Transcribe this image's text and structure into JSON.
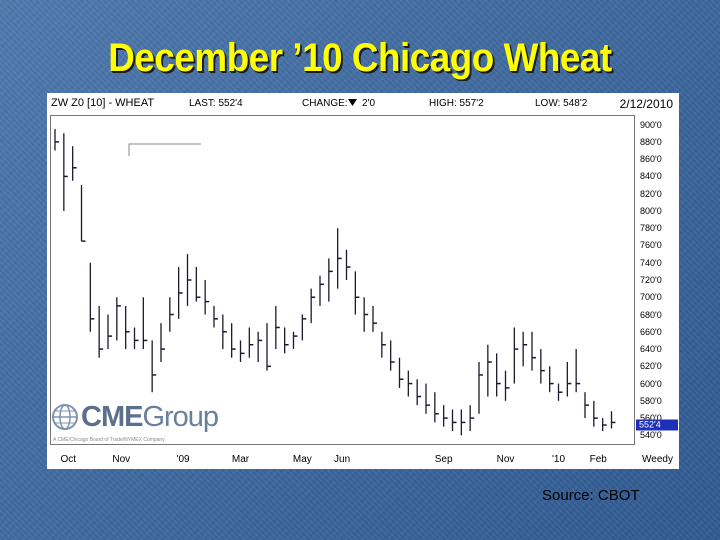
{
  "slide": {
    "title": "December ’10 Chicago Wheat",
    "source": "Source: CBOT",
    "title_color": "#ffff00",
    "background_color": "#3f6aa0"
  },
  "header": {
    "symbol": "ZW Z0 [10] - WHEAT",
    "last": "LAST: 552'4",
    "change_label": "CHANGE:",
    "change_icon": "down-triangle-icon",
    "change_value": "2'0",
    "high": "HIGH: 557'2",
    "low": "LOW: 548'2",
    "date": "2/12/2010"
  },
  "logo": {
    "name_bold": "CME",
    "name_rest": "Group",
    "tagline": "A CME/Chicago Board of Trade/NYMEX Company"
  },
  "last_badge": "552'4",
  "chart_data": {
    "type": "ohlc",
    "title": "",
    "xlabel": "",
    "ylabel": "",
    "ylim": [
      530,
      910
    ],
    "y_ticks": [
      "900'0",
      "880'0",
      "860'0",
      "840'0",
      "820'0",
      "800'0",
      "780'0",
      "760'0",
      "740'0",
      "720'0",
      "700'0",
      "680'0",
      "660'0",
      "640'0",
      "620'0",
      "600'0",
      "580'0",
      "560'0",
      "540'0"
    ],
    "y_tick_values": [
      900,
      880,
      860,
      840,
      820,
      800,
      780,
      760,
      740,
      720,
      700,
      680,
      660,
      640,
      620,
      600,
      580,
      560,
      540
    ],
    "x_ticks": [
      "Oct",
      "Nov",
      "'09",
      "Mar",
      "May",
      "Jun",
      "Sep",
      "Nov",
      "'10",
      "Feb",
      "Weedy"
    ],
    "x_tick_positions": [
      1.5,
      7.5,
      14.5,
      21,
      28,
      32.5,
      44,
      51,
      57,
      61.5,
      65
    ],
    "grid": false,
    "bar_color": "#1a1a2e",
    "last_value": 552.5,
    "series": [
      {
        "values": [
          {
            "h": 895,
            "l": 870,
            "c": 880
          },
          {
            "h": 890,
            "l": 800,
            "c": 840
          },
          {
            "h": 875,
            "l": 835,
            "c": 850
          },
          {
            "h": 830,
            "l": 765,
            "c": 765
          },
          {
            "h": 740,
            "l": 660,
            "c": 675
          },
          {
            "h": 690,
            "l": 630,
            "c": 640
          },
          {
            "h": 680,
            "l": 640,
            "c": 655
          },
          {
            "h": 700,
            "l": 650,
            "c": 690
          },
          {
            "h": 690,
            "l": 640,
            "c": 660
          },
          {
            "h": 665,
            "l": 640,
            "c": 650
          },
          {
            "h": 700,
            "l": 640,
            "c": 650
          },
          {
            "h": 650,
            "l": 590,
            "c": 610
          },
          {
            "h": 670,
            "l": 625,
            "c": 640
          },
          {
            "h": 700,
            "l": 660,
            "c": 680
          },
          {
            "h": 735,
            "l": 675,
            "c": 705
          },
          {
            "h": 750,
            "l": 690,
            "c": 720
          },
          {
            "h": 735,
            "l": 695,
            "c": 700
          },
          {
            "h": 720,
            "l": 680,
            "c": 695
          },
          {
            "h": 690,
            "l": 665,
            "c": 675
          },
          {
            "h": 680,
            "l": 640,
            "c": 660
          },
          {
            "h": 670,
            "l": 630,
            "c": 640
          },
          {
            "h": 650,
            "l": 625,
            "c": 635
          },
          {
            "h": 665,
            "l": 630,
            "c": 645
          },
          {
            "h": 660,
            "l": 625,
            "c": 650
          },
          {
            "h": 670,
            "l": 615,
            "c": 620
          },
          {
            "h": 690,
            "l": 640,
            "c": 665
          },
          {
            "h": 665,
            "l": 635,
            "c": 645
          },
          {
            "h": 660,
            "l": 640,
            "c": 655
          },
          {
            "h": 680,
            "l": 650,
            "c": 675
          },
          {
            "h": 710,
            "l": 670,
            "c": 700
          },
          {
            "h": 725,
            "l": 690,
            "c": 715
          },
          {
            "h": 745,
            "l": 695,
            "c": 730
          },
          {
            "h": 780,
            "l": 710,
            "c": 745
          },
          {
            "h": 755,
            "l": 720,
            "c": 735
          },
          {
            "h": 730,
            "l": 680,
            "c": 700
          },
          {
            "h": 700,
            "l": 660,
            "c": 680
          },
          {
            "h": 690,
            "l": 660,
            "c": 670
          },
          {
            "h": 660,
            "l": 630,
            "c": 645
          },
          {
            "h": 650,
            "l": 615,
            "c": 625
          },
          {
            "h": 630,
            "l": 595,
            "c": 605
          },
          {
            "h": 615,
            "l": 585,
            "c": 600
          },
          {
            "h": 605,
            "l": 575,
            "c": 585
          },
          {
            "h": 600,
            "l": 565,
            "c": 575
          },
          {
            "h": 590,
            "l": 555,
            "c": 565
          },
          {
            "h": 575,
            "l": 550,
            "c": 560
          },
          {
            "h": 570,
            "l": 545,
            "c": 555
          },
          {
            "h": 570,
            "l": 540,
            "c": 555
          },
          {
            "h": 575,
            "l": 545,
            "c": 560
          },
          {
            "h": 625,
            "l": 565,
            "c": 610
          },
          {
            "h": 645,
            "l": 585,
            "c": 625
          },
          {
            "h": 635,
            "l": 585,
            "c": 600
          },
          {
            "h": 615,
            "l": 580,
            "c": 595
          },
          {
            "h": 665,
            "l": 600,
            "c": 640
          },
          {
            "h": 660,
            "l": 620,
            "c": 645
          },
          {
            "h": 660,
            "l": 615,
            "c": 630
          },
          {
            "h": 640,
            "l": 600,
            "c": 615
          },
          {
            "h": 620,
            "l": 590,
            "c": 600
          },
          {
            "h": 600,
            "l": 580,
            "c": 590
          },
          {
            "h": 625,
            "l": 585,
            "c": 600
          },
          {
            "h": 640,
            "l": 590,
            "c": 600
          },
          {
            "h": 590,
            "l": 560,
            "c": 575
          },
          {
            "h": 580,
            "l": 550,
            "c": 560
          },
          {
            "h": 560,
            "l": 545,
            "c": 552
          },
          {
            "h": 568,
            "l": 548,
            "c": 555
          }
        ]
      }
    ]
  }
}
